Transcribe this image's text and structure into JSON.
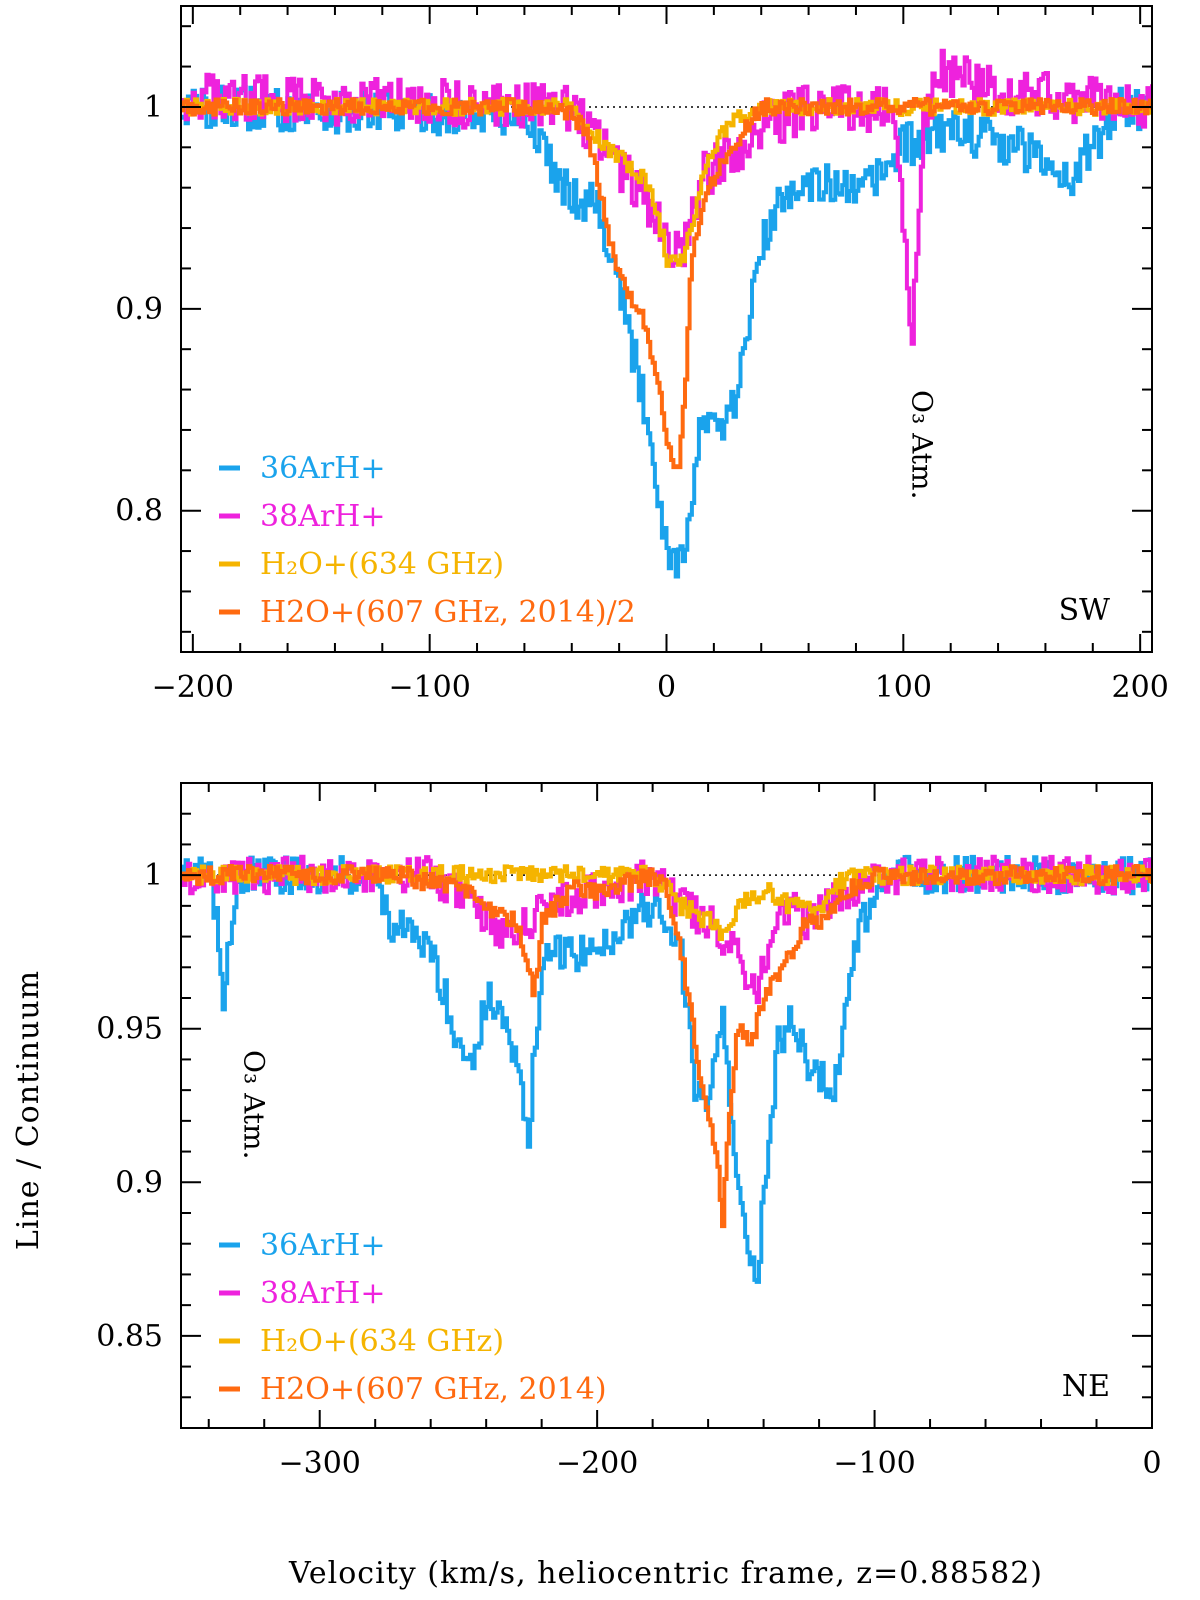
{
  "figure": {
    "ylabel": "Line / Continuum",
    "xlabel": "Velocity (km/s, heliocentric frame, z=0.88582)"
  },
  "colors": {
    "36ArH+": "#1aa3ec",
    "38ArH+": "#ee22dd",
    "H2O+_634": "#f5b400",
    "H2O+_607": "#ff6a10"
  },
  "chart_data": [
    {
      "type": "line",
      "panel": "SW",
      "panel_label": "SW",
      "xlim": [
        -205,
        205
      ],
      "ylim": [
        0.73,
        1.05
      ],
      "xticks": [
        -200,
        -100,
        0,
        100,
        200
      ],
      "xtick_labels": [
        "−200",
        "−100",
        "0",
        "100",
        "200"
      ],
      "yticks": [
        0.8,
        0.9,
        1
      ],
      "ytick_labels": [
        "0.8",
        "0.9",
        "1"
      ],
      "reference_line": 1,
      "annotation": {
        "text": "O₃ Atm.",
        "x": 103
      },
      "legend": [
        {
          "label": "36ArH+",
          "color": "#1aa3ec"
        },
        {
          "label": "38ArH+",
          "color": "#ee22dd"
        },
        {
          "label": "H₂O+(634 GHz)",
          "color": "#f5b400"
        },
        {
          "label": "H2O+(607 GHz, 2014)/2",
          "color": "#ff6a10"
        }
      ],
      "series": [
        {
          "name": "36ArH+",
          "color": "#1aa3ec",
          "noise": 0.011,
          "x": [
            -205,
            -60,
            -50,
            -40,
            -30,
            -20,
            -15,
            -10,
            -5,
            0,
            5,
            10,
            15,
            20,
            25,
            30,
            35,
            40,
            50,
            60,
            70,
            80,
            100,
            120,
            160,
            170,
            180,
            190,
            205
          ],
          "y": [
            1.0,
            0.995,
            0.975,
            0.955,
            0.955,
            0.91,
            0.88,
            0.855,
            0.82,
            0.78,
            0.775,
            0.8,
            0.85,
            0.84,
            0.84,
            0.86,
            0.9,
            0.93,
            0.96,
            0.965,
            0.96,
            0.955,
            0.98,
            0.99,
            0.975,
            0.965,
            0.98,
            1.0,
            1.0
          ]
        },
        {
          "name": "38ArH+",
          "color": "#ee22dd",
          "noise": 0.012,
          "x": [
            -205,
            -40,
            -30,
            -20,
            -10,
            -5,
            0,
            5,
            10,
            15,
            20,
            30,
            40,
            60,
            95,
            99,
            101,
            103,
            105,
            108,
            115,
            130,
            205
          ],
          "y": [
            1.005,
            1.0,
            0.985,
            0.97,
            0.955,
            0.945,
            0.93,
            0.925,
            0.945,
            0.965,
            0.97,
            0.98,
            0.99,
            1.0,
            1.0,
            0.96,
            0.92,
            0.88,
            0.92,
            0.99,
            1.02,
            1.01,
            1.0
          ]
        },
        {
          "name": "H₂O+(634 GHz)",
          "color": "#f5b400",
          "noise": 0.004,
          "x": [
            -205,
            -40,
            -30,
            -20,
            -10,
            -5,
            0,
            5,
            10,
            15,
            20,
            25,
            30,
            40,
            205
          ],
          "y": [
            1.0,
            1.0,
            0.985,
            0.975,
            0.965,
            0.95,
            0.925,
            0.92,
            0.94,
            0.965,
            0.98,
            0.99,
            0.995,
            1.0,
            1.0
          ]
        },
        {
          "name": "H2O+(607 GHz, 2014)/2",
          "color": "#ff6a10",
          "noise": 0.004,
          "x": [
            -205,
            -45,
            -35,
            -30,
            -25,
            -20,
            -15,
            -10,
            -5,
            0,
            3,
            5,
            7,
            10,
            15,
            20,
            30,
            40,
            205
          ],
          "y": [
            1.0,
            1.0,
            0.99,
            0.97,
            0.935,
            0.915,
            0.905,
            0.895,
            0.87,
            0.835,
            0.82,
            0.82,
            0.85,
            0.92,
            0.955,
            0.965,
            0.985,
            1.0,
            1.0
          ]
        }
      ]
    },
    {
      "type": "line",
      "panel": "NE",
      "panel_label": "NE",
      "xlim": [
        -350,
        0
      ],
      "ylim": [
        0.82,
        1.03
      ],
      "xticks": [
        -300,
        -200,
        -100,
        0
      ],
      "xtick_labels": [
        "−300",
        "−200",
        "−100",
        "0"
      ],
      "yticks": [
        0.85,
        0.9,
        0.95,
        1
      ],
      "ytick_labels": [
        "0.85",
        "0.9",
        "0.95",
        "1"
      ],
      "reference_line": 1,
      "annotation": {
        "text": "O₃ Atm.",
        "x": -335
      },
      "legend": [
        {
          "label": "36ArH+",
          "color": "#1aa3ec"
        },
        {
          "label": "38ArH+",
          "color": "#ee22dd"
        },
        {
          "label": "H₂O+(634 GHz)",
          "color": "#f5b400"
        },
        {
          "label": "H2O+(607 GHz, 2014)",
          "color": "#ff6a10"
        }
      ],
      "series": [
        {
          "name": "36ArH+",
          "color": "#1aa3ec",
          "noise": 0.006,
          "x": [
            -350,
            -340,
            -337,
            -335,
            -333,
            -330,
            -280,
            -275,
            -260,
            -250,
            -245,
            -240,
            -235,
            -230,
            -225,
            -223,
            -220,
            -215,
            -200,
            -190,
            -180,
            -170,
            -165,
            -160,
            -157,
            -155,
            -152,
            -150,
            -145,
            -143,
            -140,
            -135,
            -130,
            -125,
            -120,
            -115,
            -110,
            -105,
            -95,
            -80,
            0
          ],
          "y": [
            1.005,
            1.0,
            0.98,
            0.96,
            0.98,
            1.0,
            1.0,
            0.985,
            0.975,
            0.945,
            0.94,
            0.96,
            0.955,
            0.94,
            0.915,
            0.94,
            0.97,
            0.975,
            0.975,
            0.985,
            0.99,
            0.975,
            0.93,
            0.925,
            0.945,
            0.96,
            0.92,
            0.905,
            0.875,
            0.862,
            0.9,
            0.945,
            0.955,
            0.94,
            0.935,
            0.93,
            0.96,
            0.985,
            1.0,
            1.0,
            1.0
          ]
        },
        {
          "name": "38ArH+",
          "color": "#ee22dd",
          "noise": 0.006,
          "x": [
            -350,
            -260,
            -245,
            -240,
            -230,
            -220,
            -200,
            -180,
            -170,
            -160,
            -155,
            -150,
            -145,
            -143,
            -140,
            -135,
            -130,
            -125,
            -120,
            -110,
            -100,
            0
          ],
          "y": [
            1.0,
            1.0,
            0.99,
            0.985,
            0.98,
            0.99,
            0.995,
            1.0,
            0.99,
            0.985,
            0.98,
            0.975,
            0.965,
            0.96,
            0.97,
            0.985,
            0.99,
            0.985,
            0.99,
            0.995,
            1.0,
            1.0
          ]
        },
        {
          "name": "H₂O+(634 GHz)",
          "color": "#f5b400",
          "noise": 0.003,
          "x": [
            -350,
            -180,
            -170,
            -160,
            -155,
            -150,
            -140,
            -130,
            -120,
            -110,
            0
          ],
          "y": [
            1.0,
            1.0,
            0.99,
            0.985,
            0.98,
            0.99,
            0.995,
            0.99,
            0.99,
            1.0,
            1.0
          ]
        },
        {
          "name": "H2O+(607 GHz, 2014)",
          "color": "#ff6a10",
          "noise": 0.003,
          "x": [
            -350,
            -270,
            -250,
            -240,
            -230,
            -225,
            -223,
            -220,
            -210,
            -200,
            -180,
            -175,
            -170,
            -165,
            -160,
            -157,
            -155,
            -153,
            -150,
            -148,
            -145,
            -140,
            -130,
            -125,
            -120,
            -115,
            -110,
            -100,
            0
          ],
          "y": [
            1.0,
            1.0,
            0.995,
            0.99,
            0.985,
            0.97,
            0.96,
            0.985,
            0.995,
            0.995,
            1.0,
            0.995,
            0.975,
            0.945,
            0.92,
            0.91,
            0.885,
            0.92,
            0.945,
            0.95,
            0.945,
            0.96,
            0.975,
            0.985,
            0.985,
            0.99,
            0.995,
            1.0,
            1.0
          ]
        }
      ]
    }
  ]
}
